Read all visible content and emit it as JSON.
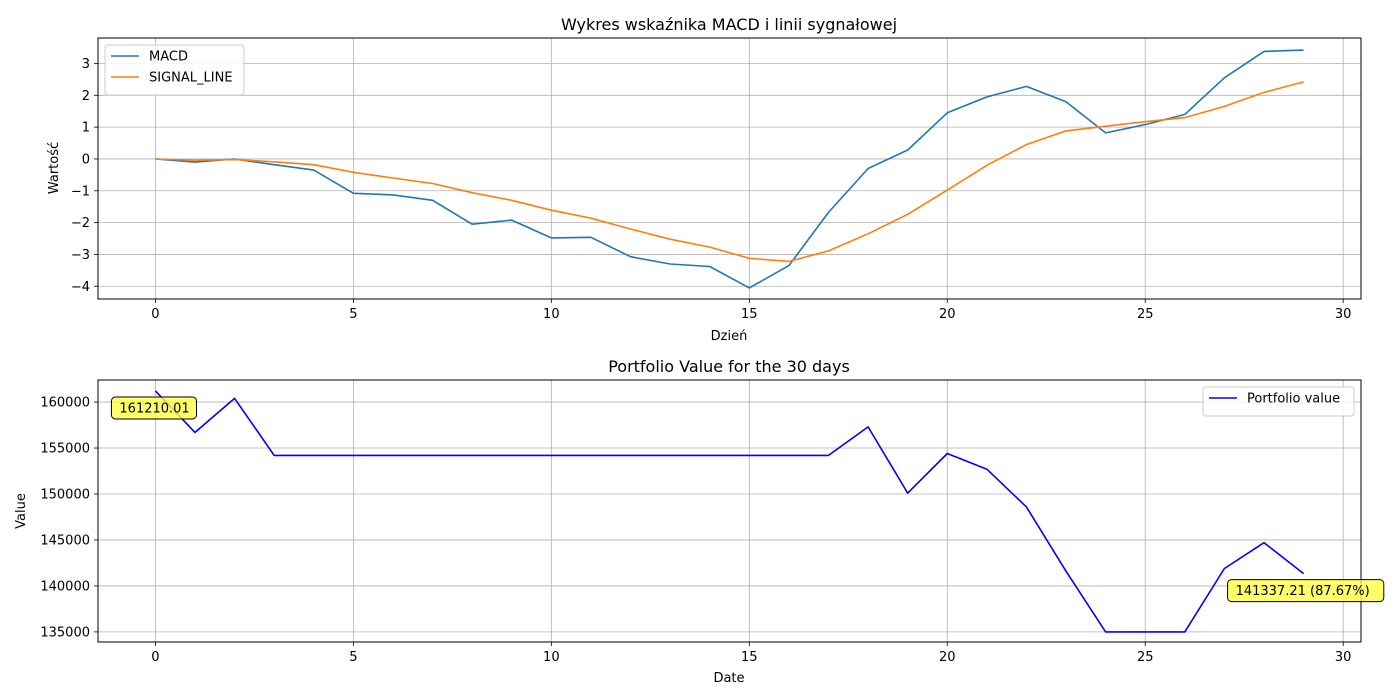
{
  "chart_data": [
    {
      "type": "line",
      "title": "Wykres wskaźnika MACD i linii sygnałowej",
      "xlabel": "Dzień",
      "ylabel": "Wartość",
      "xlim": [
        -1.45,
        30.45
      ],
      "ylim": [
        -4.4,
        3.8
      ],
      "xticks": [
        0,
        5,
        10,
        15,
        20,
        25,
        30
      ],
      "yticks": [
        -4,
        -3,
        -2,
        -1,
        0,
        1,
        2,
        3
      ],
      "grid": true,
      "legend_position": "upper left",
      "x": [
        0,
        1,
        2,
        3,
        4,
        5,
        6,
        7,
        8,
        9,
        10,
        11,
        12,
        13,
        14,
        15,
        16,
        17,
        18,
        19,
        20,
        21,
        22,
        23,
        24,
        25,
        26,
        27,
        28,
        29
      ],
      "series": [
        {
          "name": "MACD",
          "color": "#1f77b4",
          "values": [
            0.0,
            -0.1,
            0.0,
            -0.18,
            -0.35,
            -1.08,
            -1.13,
            -1.3,
            -2.05,
            -1.92,
            -2.48,
            -2.46,
            -3.07,
            -3.3,
            -3.38,
            -4.05,
            -3.35,
            -1.68,
            -0.3,
            0.28,
            1.45,
            1.95,
            2.28,
            1.8,
            0.82,
            1.08,
            1.4,
            2.55,
            3.38,
            3.42
          ]
        },
        {
          "name": "SIGNAL_LINE",
          "color": "#ff7f0e",
          "values": [
            0.0,
            -0.04,
            -0.02,
            -0.09,
            -0.18,
            -0.42,
            -0.6,
            -0.77,
            -1.06,
            -1.3,
            -1.61,
            -1.86,
            -2.2,
            -2.52,
            -2.77,
            -3.12,
            -3.22,
            -2.89,
            -2.35,
            -1.74,
            -0.98,
            -0.2,
            0.45,
            0.88,
            1.03,
            1.17,
            1.3,
            1.65,
            2.09,
            2.42
          ]
        }
      ]
    },
    {
      "type": "line",
      "title": "Portfolio Value for the 30 days",
      "xlabel": "Date",
      "ylabel": "Value",
      "xlim": [
        -1.45,
        30.45
      ],
      "ylim": [
        133900,
        162400
      ],
      "xticks": [
        0,
        5,
        10,
        15,
        20,
        25,
        30
      ],
      "yticks": [
        135000,
        140000,
        145000,
        150000,
        155000,
        160000
      ],
      "grid": true,
      "legend_position": "upper right",
      "x": [
        0,
        1,
        2,
        3,
        4,
        5,
        6,
        7,
        8,
        9,
        10,
        11,
        12,
        13,
        14,
        15,
        16,
        17,
        18,
        19,
        20,
        21,
        22,
        23,
        24,
        25,
        26,
        27,
        28,
        29
      ],
      "series": [
        {
          "name": "Portfolio value",
          "color": "#0000ff",
          "values": [
            161210.01,
            156700,
            160400,
            154200,
            154200,
            154200,
            154200,
            154200,
            154200,
            154200,
            154200,
            154200,
            154200,
            154200,
            154200,
            154200,
            154200,
            154200,
            157300,
            150100,
            154400,
            152700,
            148600,
            141600,
            135000,
            135000,
            135000,
            141900,
            144700,
            141337.21
          ]
        }
      ],
      "annotations": [
        {
          "text": "161210.01",
          "x": 0,
          "y": 161210.01
        },
        {
          "text": "141337.21 (87.67%)",
          "x": 29,
          "y": 141337.21
        }
      ],
      "annotation_color": "#ffff44"
    }
  ]
}
